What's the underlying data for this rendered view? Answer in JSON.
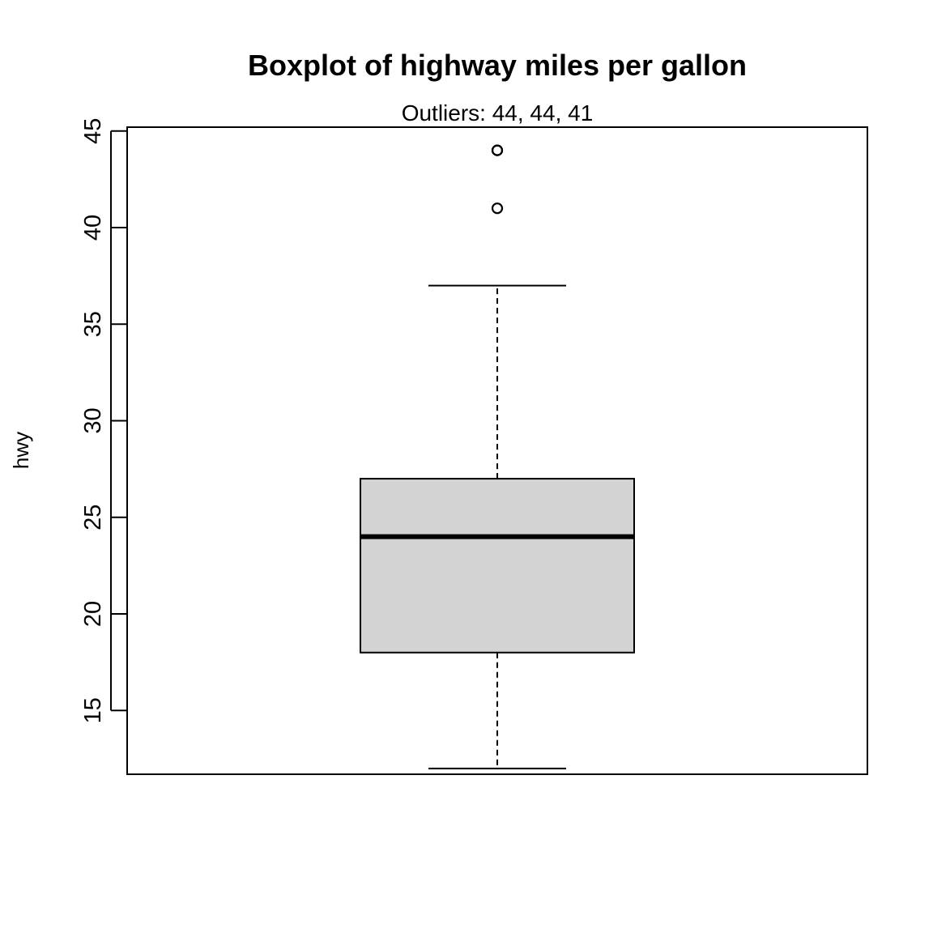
{
  "chart_data": {
    "type": "boxplot",
    "title": "Boxplot of highway miles per gallon",
    "subtitle": "Outliers:  44, 44, 41",
    "xlabel": "",
    "ylabel": "hwy",
    "ylim": [
      11.7,
      45.2
    ],
    "yticks": [
      15,
      20,
      25,
      30,
      35,
      40,
      45
    ],
    "grid": false,
    "stats": {
      "whisker_low": 12,
      "q1": 18,
      "median": 24,
      "q3": 27,
      "whisker_high": 37
    },
    "outliers": [
      44,
      44,
      41
    ],
    "colors": {
      "box_fill": "#d3d3d3",
      "stroke": "#000000"
    }
  }
}
